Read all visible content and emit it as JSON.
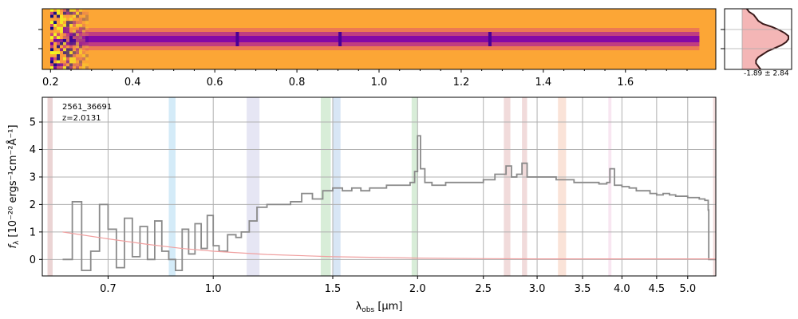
{
  "chart_data": [
    {
      "type": "heatmap",
      "panel": "2D spectrum",
      "x_ticks": [
        "0.2",
        "0.4",
        "0.6",
        "0.8",
        "1.0",
        "1.2",
        "1.4",
        "1.6"
      ],
      "x_tick_values": [
        0.2,
        0.4,
        0.6,
        0.8,
        1.0,
        1.2,
        1.4,
        1.6
      ],
      "xlim": [
        0.18,
        1.82
      ],
      "colormap": "plasma",
      "trace_row_fraction": 0.5
    },
    {
      "type": "line",
      "panel": "spatial profile",
      "annotation": "-1.89 ± 2.84",
      "profile_y": [
        0.0,
        0.05,
        0.1,
        0.15,
        0.2,
        0.25,
        0.3,
        0.35,
        0.4,
        0.45,
        0.5,
        0.55,
        0.6,
        0.65,
        0.7,
        0.75,
        0.8,
        0.85,
        0.9,
        0.95,
        1.0
      ],
      "profile_x": [
        0.1,
        0.15,
        0.25,
        0.3,
        0.35,
        0.45,
        0.65,
        0.8,
        0.92,
        1.0,
        1.0,
        0.95,
        0.85,
        0.7,
        0.55,
        0.45,
        0.35,
        0.3,
        0.3,
        0.35,
        0.4
      ]
    },
    {
      "type": "line",
      "panel": "1D spectrum",
      "label_id": "2561_36691",
      "label_z": "z=2.0131",
      "xlabel_prefix": "λ",
      "xlabel_sub": "obs",
      "xlabel_suffix": " [μm]",
      "ylabel_prefix": "f",
      "ylabel_sub": "λ",
      "ylabel_suffix": " [10⁻²⁰ ergs⁻¹cm⁻²Å⁻¹]",
      "xlim": [
        0.56,
        5.5
      ],
      "ylim": [
        -0.6,
        5.9
      ],
      "x_ticks": [
        "0.7",
        "1.0",
        "1.5",
        "2.0",
        "2.5",
        "3.0",
        "3.5",
        "4.0",
        "4.5",
        "5.0"
      ],
      "x_tick_values": [
        0.7,
        1.0,
        1.5,
        2.0,
        2.5,
        3.0,
        3.5,
        4.0,
        4.5,
        5.0
      ],
      "y_ticks": [
        "0",
        "1",
        "2",
        "3",
        "4",
        "5"
      ],
      "y_tick_values": [
        0,
        1,
        2,
        3,
        4,
        5
      ],
      "grid": true,
      "series": [
        {
          "color": "#8a8a8a",
          "x": [
            0.6,
            0.62,
            0.64,
            0.66,
            0.68,
            0.7,
            0.72,
            0.74,
            0.76,
            0.78,
            0.8,
            0.82,
            0.84,
            0.86,
            0.88,
            0.9,
            0.92,
            0.94,
            0.96,
            0.98,
            1.0,
            1.02,
            1.05,
            1.08,
            1.1,
            1.13,
            1.16,
            1.2,
            1.25,
            1.3,
            1.35,
            1.4,
            1.45,
            1.5,
            1.55,
            1.6,
            1.65,
            1.7,
            1.75,
            1.8,
            1.85,
            1.9,
            1.95,
            1.98,
            2.0,
            2.02,
            2.05,
            2.1,
            2.2,
            2.3,
            2.4,
            2.5,
            2.6,
            2.7,
            2.75,
            2.8,
            2.85,
            2.9,
            3.0,
            3.1,
            3.2,
            3.3,
            3.4,
            3.5,
            3.6,
            3.7,
            3.8,
            3.84,
            3.9,
            4.0,
            4.1,
            4.2,
            4.3,
            4.4,
            4.5,
            4.6,
            4.7,
            4.8,
            4.9,
            5.0,
            5.1,
            5.2,
            5.3,
            5.36,
            5.37,
            5.5
          ],
          "y": [
            0.0,
            2.1,
            -0.4,
            0.3,
            2.0,
            1.1,
            -0.3,
            1.5,
            0.1,
            1.2,
            0.0,
            1.4,
            0.3,
            0.0,
            -0.4,
            1.1,
            0.2,
            1.3,
            0.4,
            1.6,
            0.5,
            0.3,
            0.9,
            0.8,
            1.0,
            1.4,
            1.9,
            2.0,
            2.0,
            2.1,
            2.4,
            2.2,
            2.5,
            2.6,
            2.5,
            2.6,
            2.5,
            2.6,
            2.6,
            2.7,
            2.7,
            2.7,
            2.8,
            3.2,
            4.5,
            3.3,
            2.8,
            2.7,
            2.8,
            2.8,
            2.8,
            2.9,
            3.1,
            3.4,
            3.0,
            3.1,
            3.5,
            3.0,
            3.0,
            3.0,
            2.9,
            2.9,
            2.8,
            2.8,
            2.8,
            2.75,
            2.8,
            3.3,
            2.7,
            2.65,
            2.6,
            2.5,
            2.5,
            2.4,
            2.35,
            2.4,
            2.35,
            2.3,
            2.3,
            2.25,
            2.25,
            2.2,
            2.15,
            1.8,
            0.0,
            0.0
          ]
        },
        {
          "color": "#f0a0a0",
          "x": [
            0.6,
            0.7,
            0.8,
            0.9,
            1.0,
            1.2,
            1.5,
            2.0,
            2.5,
            3.0,
            3.5,
            4.0,
            4.5,
            5.0,
            5.5
          ],
          "y": [
            1.0,
            0.75,
            0.55,
            0.4,
            0.3,
            0.18,
            0.1,
            0.05,
            0.03,
            0.02,
            0.02,
            0.02,
            0.02,
            0.02,
            0.02
          ]
        }
      ],
      "bands": [
        {
          "x0": 0.57,
          "x1": 0.58,
          "color": "#d2a0a0"
        },
        {
          "x0": 0.86,
          "x1": 0.88,
          "color": "#a0d2f0"
        },
        {
          "x0": 1.12,
          "x1": 1.17,
          "color": "#c8c8e6"
        },
        {
          "x0": 1.44,
          "x1": 1.49,
          "color": "#a8d8a8"
        },
        {
          "x0": 1.5,
          "x1": 1.54,
          "color": "#a8c8e8"
        },
        {
          "x0": 1.96,
          "x1": 2.0,
          "color": "#a8d8a8"
        },
        {
          "x0": 2.68,
          "x1": 2.74,
          "color": "#e0b0b0"
        },
        {
          "x0": 2.85,
          "x1": 2.9,
          "color": "#e0b0b0"
        },
        {
          "x0": 3.22,
          "x1": 3.31,
          "color": "#f5c0a8"
        },
        {
          "x0": 3.82,
          "x1": 3.86,
          "color": "#f0c8e0"
        },
        {
          "x0": 5.45,
          "x1": 5.5,
          "color": "#e0b0b0"
        }
      ]
    }
  ]
}
